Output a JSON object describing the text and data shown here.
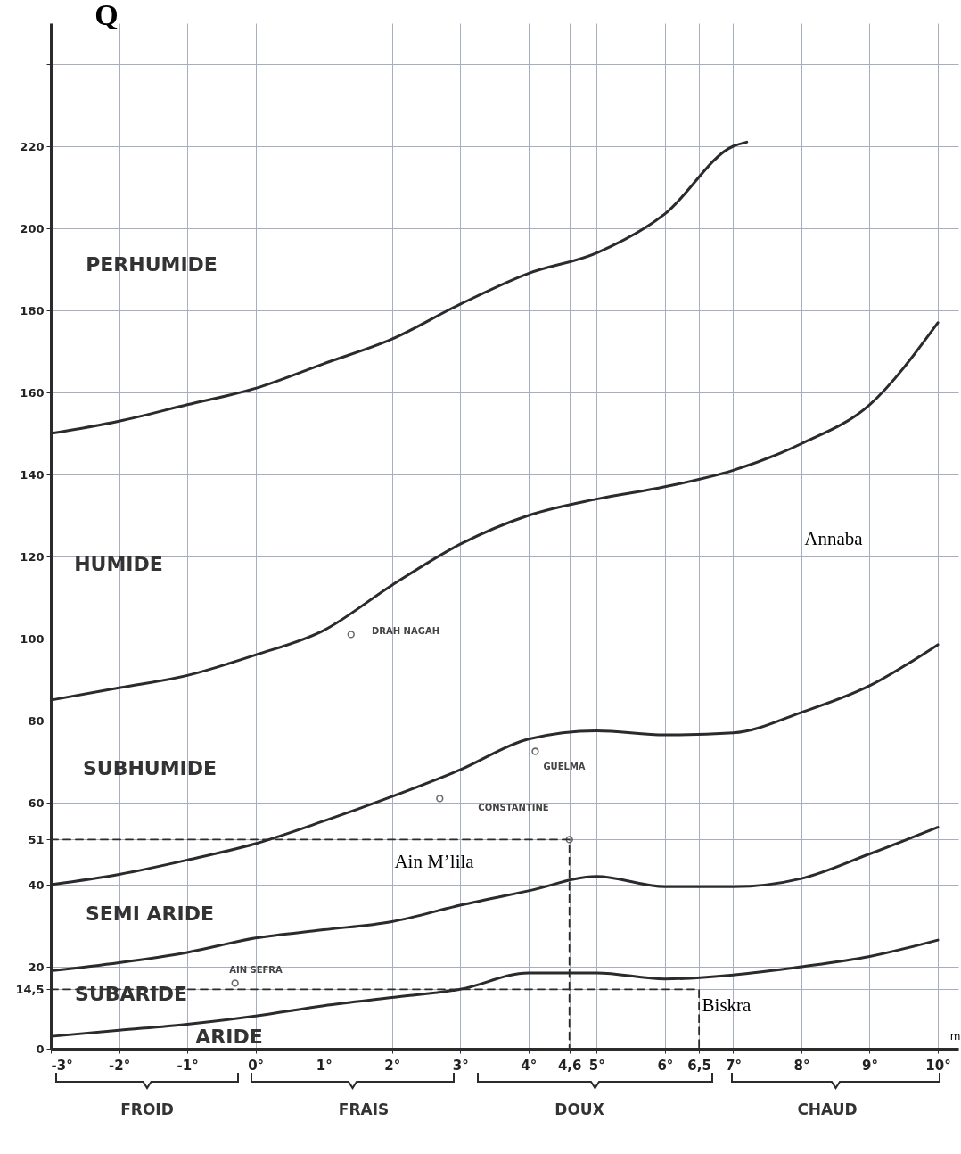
{
  "chart_data": {
    "type": "line",
    "xlabel": "m",
    "ylabel": "Q",
    "x": [
      -3,
      -2,
      -1,
      0,
      1,
      2,
      3,
      4,
      5,
      6,
      7,
      8,
      9,
      10
    ],
    "series": [
      {
        "color": "#2b2b2b",
        "x": [
          -3,
          -2,
          -1,
          0,
          1,
          2,
          3,
          4,
          5,
          6,
          7,
          7.2
        ],
        "values": [
          150,
          153,
          157,
          161,
          167,
          173,
          181.5,
          189,
          194,
          203.5,
          220,
          221
        ]
      },
      {
        "color": "#2b2b2b",
        "values": [
          85,
          88,
          91,
          96,
          102,
          113,
          123,
          130,
          134,
          137,
          141,
          147.5,
          157,
          177
        ]
      },
      {
        "color": "#2b2b2b",
        "values": [
          40,
          42.5,
          46,
          50,
          55.5,
          61.5,
          68,
          75.5,
          77.5,
          76.5,
          77,
          82,
          88.5,
          98.5
        ]
      },
      {
        "color": "#2b2b2b",
        "values": [
          19,
          21,
          23.5,
          27,
          29,
          31,
          35,
          38.5,
          42,
          39.5,
          39.5,
          41.5,
          47.5,
          54
        ]
      },
      {
        "color": "#2b2b2b",
        "values": [
          3,
          4.5,
          6,
          8,
          10.5,
          12.5,
          14.5,
          18.5,
          18.5,
          17,
          18,
          20,
          22.5,
          26.5
        ]
      },
      {
        "type": "line",
        "line_style": "dashed",
        "color": "#2b2b2b",
        "x": [
          -3,
          4.6,
          4.6
        ],
        "values": [
          51,
          51,
          0
        ]
      },
      {
        "type": "line",
        "line_style": "dashed",
        "color": "#2b2b2b",
        "x": [
          -3,
          6.5,
          6.5
        ],
        "values": [
          14.5,
          14.5,
          0
        ]
      },
      {
        "type": "scatter",
        "marker": "circle",
        "color": "#2b2b2b",
        "x": [
          1.4,
          4.1,
          2.7,
          -0.3,
          4.6
        ],
        "values": [
          101,
          72.5,
          61,
          16,
          51
        ]
      }
    ],
    "xlim": [
      -3,
      10.3
    ],
    "xticks": [
      {
        "value": -3,
        "label": "-3°"
      },
      {
        "value": -2,
        "label": "-2°"
      },
      {
        "value": -1,
        "label": "-1°"
      },
      {
        "value": 0,
        "label": "0°"
      },
      {
        "value": 1,
        "label": "1°"
      },
      {
        "value": 2,
        "label": "2°"
      },
      {
        "value": 3,
        "label": "3°"
      },
      {
        "value": 4,
        "label": "4°"
      },
      {
        "value": 4.6,
        "label": "4,6"
      },
      {
        "value": 5,
        "label": "5°"
      },
      {
        "value": 6,
        "label": "6°"
      },
      {
        "value": 6.5,
        "label": "6,5"
      },
      {
        "value": 7,
        "label": "7°"
      },
      {
        "value": 8,
        "label": "8°"
      },
      {
        "value": 9,
        "label": "9°"
      },
      {
        "value": 10,
        "label": "10°"
      }
    ],
    "ylim": [
      0,
      250
    ],
    "yticks": [
      0,
      {
        "value": 14.5,
        "label": "14,5"
      },
      20,
      40,
      51,
      60,
      80,
      100,
      120,
      140,
      160,
      180,
      200,
      220,
      {
        "value": 240,
        "label": null
      }
    ],
    "grid": true,
    "annotations": [
      "PERHUMIDE",
      "HUMIDE",
      "SUBHUMIDE",
      "SEMI ARIDE",
      "SUBARIDE",
      "ARIDE",
      "DRAH NAGAH",
      "GUELMA",
      "CONSTANTINE",
      "AIN SEFRA",
      "Ain M’lila",
      "Biskra",
      "Annaba",
      "FROID",
      "FRAIS",
      "DOUX",
      "CHAUD"
    ]
  }
}
